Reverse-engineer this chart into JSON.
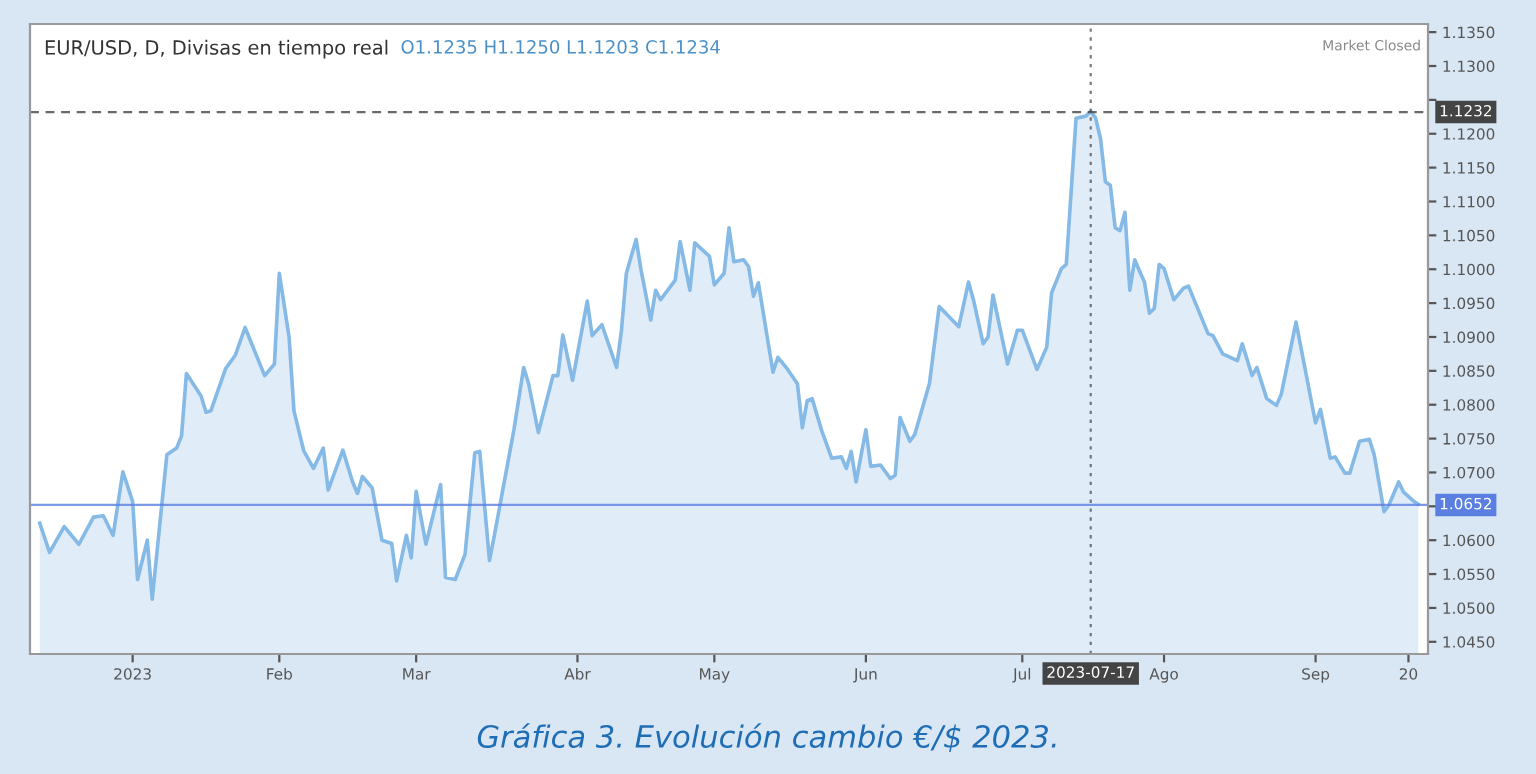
{
  "chart_data": {
    "type": "area",
    "title": "EUR/USD, D, Divisas en tiempo real",
    "annotations": [
      "O1.1235 H1.1250 L1.1203 C1.1234",
      "Market Closed",
      "Gráfica 3. Evolución cambio €/$ 2023."
    ],
    "x": [
      "2022-12-14",
      "2022-12-16",
      "2022-12-19",
      "2022-12-22",
      "2022-12-25",
      "2022-12-27",
      "2022-12-29",
      "2022-12-31",
      "2023-01-02",
      "2023-01-03",
      "2023-01-05",
      "2023-01-06",
      "2023-01-09",
      "2023-01-11",
      "2023-01-12",
      "2023-01-13",
      "2023-01-16",
      "2023-01-17",
      "2023-01-18",
      "2023-01-21",
      "2023-01-23",
      "2023-01-25",
      "2023-01-29",
      "2023-01-31",
      "2023-02-01",
      "2023-02-03",
      "2023-02-04",
      "2023-02-06",
      "2023-02-08",
      "2023-02-10",
      "2023-02-11",
      "2023-02-14",
      "2023-02-16",
      "2023-02-17",
      "2023-02-18",
      "2023-02-20",
      "2023-02-22",
      "2023-02-24",
      "2023-02-25",
      "2023-02-27",
      "2023-02-28",
      "2023-03-01",
      "2023-03-03",
      "2023-03-06",
      "2023-03-07",
      "2023-03-09",
      "2023-03-11",
      "2023-03-13",
      "2023-03-14",
      "2023-03-16",
      "2023-03-17",
      "2023-03-21",
      "2023-03-23",
      "2023-03-24",
      "2023-03-26",
      "2023-03-29",
      "2023-03-30",
      "2023-03-31",
      "2023-04-02",
      "2023-04-05",
      "2023-04-06",
      "2023-04-08",
      "2023-04-11",
      "2023-04-12",
      "2023-04-13",
      "2023-04-15",
      "2023-04-16",
      "2023-04-18",
      "2023-04-19",
      "2023-04-20",
      "2023-04-23",
      "2023-04-24",
      "2023-04-26",
      "2023-04-27",
      "2023-04-30",
      "2023-05-01",
      "2023-05-03",
      "2023-05-04",
      "2023-05-05",
      "2023-05-07",
      "2023-05-08",
      "2023-05-09",
      "2023-05-10",
      "2023-05-13",
      "2023-05-14",
      "2023-05-16",
      "2023-05-18",
      "2023-05-19",
      "2023-05-20",
      "2023-05-21",
      "2023-05-23",
      "2023-05-24",
      "2023-05-25",
      "2023-05-27",
      "2023-05-28",
      "2023-05-29",
      "2023-05-30",
      "2023-06-01",
      "2023-06-02",
      "2023-06-04",
      "2023-06-06",
      "2023-06-07",
      "2023-06-08",
      "2023-06-10",
      "2023-06-11",
      "2023-06-14",
      "2023-06-16",
      "2023-06-20",
      "2023-06-22",
      "2023-06-23",
      "2023-06-25",
      "2023-06-26",
      "2023-06-27",
      "2023-06-30",
      "2023-07-02",
      "2023-07-03",
      "2023-07-06",
      "2023-07-08",
      "2023-07-09",
      "2023-07-11",
      "2023-07-12",
      "2023-07-14",
      "2023-07-16",
      "2023-07-17",
      "2023-07-18",
      "2023-07-19",
      "2023-07-20",
      "2023-07-21",
      "2023-07-22",
      "2023-07-23",
      "2023-07-24",
      "2023-07-25",
      "2023-07-26",
      "2023-07-27",
      "2023-07-28",
      "2023-07-29",
      "2023-07-30",
      "2023-07-31",
      "2023-08-01",
      "2023-08-03",
      "2023-08-05",
      "2023-08-06",
      "2023-08-10",
      "2023-08-11",
      "2023-08-13",
      "2023-08-16",
      "2023-08-17",
      "2023-08-19",
      "2023-08-20",
      "2023-08-22",
      "2023-08-24",
      "2023-08-25",
      "2023-08-28",
      "2023-09-01",
      "2023-09-02",
      "2023-09-04",
      "2023-09-05",
      "2023-09-07",
      "2023-09-08",
      "2023-09-10",
      "2023-09-12",
      "2023-09-13",
      "2023-09-15",
      "2023-09-16",
      "2023-09-18",
      "2023-09-19",
      "2023-09-21",
      "2023-09-22"
    ],
    "series": [
      {
        "color": "#85b9e6",
        "values": [
          1.0625,
          1.0582,
          1.062,
          1.0594,
          1.0634,
          1.0636,
          1.0607,
          1.0701,
          1.0657,
          1.0542,
          1.06,
          1.0513,
          1.0726,
          1.0736,
          1.0754,
          1.0846,
          1.0813,
          1.0789,
          1.0791,
          1.0853,
          1.0873,
          1.0914,
          1.0843,
          1.086,
          1.0994,
          1.09,
          1.0791,
          1.0732,
          1.0706,
          1.0736,
          1.0674,
          1.0733,
          1.0686,
          1.0669,
          1.0694,
          1.0677,
          1.06,
          1.0595,
          1.054,
          1.0607,
          1.0574,
          1.0672,
          1.0594,
          1.0682,
          1.0545,
          1.0542,
          1.0579,
          1.0729,
          1.0731,
          1.057,
          1.0607,
          1.0763,
          1.0855,
          1.0831,
          1.0759,
          1.0843,
          1.0843,
          1.0903,
          1.0836,
          1.0953,
          1.0902,
          1.0918,
          1.0855,
          1.091,
          1.0994,
          1.1044,
          1.0999,
          1.0925,
          1.0969,
          1.0955,
          1.0984,
          1.1041,
          1.0969,
          1.1039,
          1.1019,
          1.0977,
          1.0994,
          1.1061,
          1.1011,
          1.1014,
          1.1004,
          1.096,
          1.098,
          1.0848,
          1.087,
          1.0852,
          1.0831,
          1.0766,
          1.0806,
          1.0809,
          1.0761,
          1.0741,
          1.0721,
          1.0723,
          1.0706,
          1.0731,
          1.0686,
          1.0763,
          1.0709,
          1.0711,
          1.0691,
          1.0696,
          1.0781,
          1.0746,
          1.0756,
          1.0831,
          1.0945,
          1.0915,
          1.0981,
          1.0955,
          1.089,
          1.09,
          1.0962,
          1.086,
          1.091,
          1.091,
          1.0852,
          1.0885,
          1.0965,
          1.1001,
          1.1007,
          1.1223,
          1.1226,
          1.1233,
          1.1223,
          1.1193,
          1.1129,
          1.1124,
          1.1061,
          1.1057,
          1.1084,
          1.0969,
          1.1014,
          1.0997,
          1.0981,
          1.0935,
          1.0942,
          1.1007,
          1.1001,
          1.0955,
          1.0972,
          1.0975,
          1.0905,
          1.0902,
          1.0875,
          1.0865,
          1.089,
          1.0843,
          1.0855,
          1.0809,
          1.0799,
          1.0816,
          1.0922,
          1.0773,
          1.0793,
          1.0721,
          1.0723,
          1.0699,
          1.0699,
          1.0746,
          1.0749,
          1.0726,
          1.0642,
          1.0652,
          1.0686,
          1.0671,
          1.0658,
          1.0653
        ]
      }
    ],
    "xlim": [
      "2022-12-12",
      "2023-09-24"
    ],
    "xticks": [
      {
        "value": "2023-01-02",
        "label": "2023"
      },
      {
        "value": "2023-02-01",
        "label": "Feb"
      },
      {
        "value": "2023-03-01",
        "label": "Mar"
      },
      {
        "value": "2023-04-03",
        "label": "Abr"
      },
      {
        "value": "2023-05-01",
        "label": "May"
      },
      {
        "value": "2023-06-01",
        "label": "Jun"
      },
      {
        "value": "2023-07-03",
        "label": "Jul"
      },
      {
        "value": "2023-08-01",
        "label": "Ago"
      },
      {
        "value": "2023-09-01",
        "label": "Sep"
      },
      {
        "value": "2023-09-20",
        "label": "20"
      }
    ],
    "ylim": [
      1.0432,
      1.1362
    ],
    "yticks": [
      {
        "value": 1.045,
        "label": "1.0450"
      },
      {
        "value": 1.05,
        "label": "1.0500"
      },
      {
        "value": 1.055,
        "label": "1.0550"
      },
      {
        "value": 1.06,
        "label": "1.0600"
      },
      {
        "value": 1.065,
        "label": null
      },
      {
        "value": 1.07,
        "label": "1.0700"
      },
      {
        "value": 1.075,
        "label": "1.0750"
      },
      {
        "value": 1.08,
        "label": "1.0800"
      },
      {
        "value": 1.085,
        "label": "1.0850"
      },
      {
        "value": 1.09,
        "label": "1.0900"
      },
      {
        "value": 1.095,
        "label": "1.0950"
      },
      {
        "value": 1.1,
        "label": "1.1000"
      },
      {
        "value": 1.105,
        "label": "1.1050"
      },
      {
        "value": 1.11,
        "label": "1.1100"
      },
      {
        "value": 1.115,
        "label": "1.1150"
      },
      {
        "value": 1.12,
        "label": "1.1200"
      },
      {
        "value": 1.125,
        "label": null
      },
      {
        "value": 1.13,
        "label": "1.1300"
      },
      {
        "value": 1.135,
        "label": "1.1350"
      }
    ],
    "ref_lines": [
      {
        "axis": "y",
        "value": 1.1232,
        "label": "1.1232",
        "color": "#444444",
        "line_style": "dashed"
      },
      {
        "axis": "y",
        "value": 1.0652,
        "label": "1.0652",
        "color": "#5b7fe0",
        "line_style": "solid"
      },
      {
        "axis": "x",
        "value": "2023-07-17",
        "label": "2023-07-17",
        "color": "#444444",
        "line_style": "dotted"
      }
    ],
    "grid": false,
    "legend": false,
    "marker": "none",
    "line_style": "solid"
  }
}
